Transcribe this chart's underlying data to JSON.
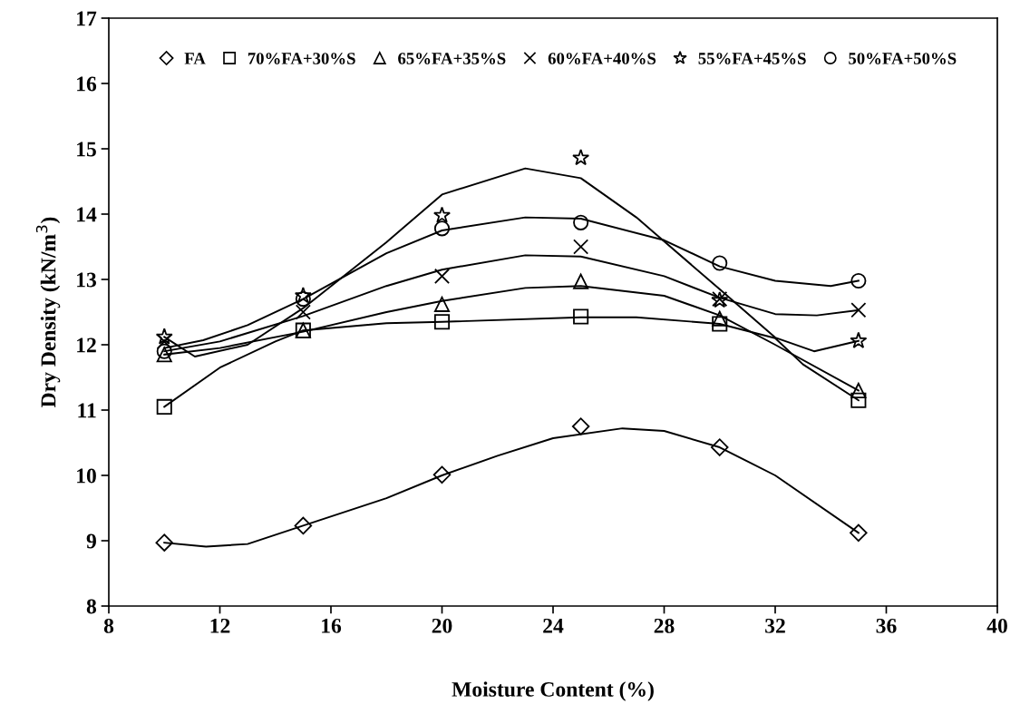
{
  "chart_data": {
    "type": "scatter",
    "xlabel": "Moisture Content (%)",
    "ylabel": "Dry Density (kN/m$^{3}$)",
    "xlim": [
      8,
      40
    ],
    "xticks": [
      8,
      12,
      16,
      20,
      24,
      28,
      32,
      36,
      40
    ],
    "ylim": [
      8,
      17
    ],
    "yticks": [
      8,
      9,
      10,
      11,
      12,
      13,
      14,
      15,
      16,
      17
    ],
    "grid": false,
    "legend": "top",
    "x": [
      10,
      15,
      20,
      25,
      30,
      35
    ],
    "series": [
      {
        "name": "FA",
        "marker": "diamond",
        "color": "#000000",
        "values": [
          8.97,
          9.23,
          10.01,
          10.75,
          10.43,
          9.12
        ]
      },
      {
        "name": "70%FA+30%S",
        "marker": "square",
        "color": "#000000",
        "values": [
          11.05,
          12.22,
          12.35,
          12.43,
          12.32,
          11.15
        ]
      },
      {
        "name": "65%FA+35%S",
        "marker": "triangle",
        "color": "#000000",
        "values": [
          11.85,
          12.22,
          12.62,
          12.97,
          12.4,
          11.3
        ]
      },
      {
        "name": "60%FA+40%S",
        "marker": "cross",
        "color": "#000000",
        "values": [
          12.05,
          12.5,
          13.05,
          13.5,
          12.7,
          12.53
        ]
      },
      {
        "name": "55%FA+45%S",
        "marker": "star",
        "color": "#000000",
        "values": [
          12.12,
          12.75,
          13.98,
          14.86,
          12.68,
          12.06
        ]
      },
      {
        "name": "50%FA+50%S",
        "marker": "circle",
        "color": "#000000",
        "values": [
          11.9,
          12.7,
          13.78,
          13.87,
          13.25,
          12.98
        ]
      },
      {
        "type": "line",
        "color": "#000000",
        "x": [
          10,
          11.5,
          13,
          15,
          18,
          20,
          22,
          24,
          26.5,
          28,
          30,
          32,
          35
        ],
        "values": [
          8.97,
          8.91,
          8.95,
          9.23,
          9.65,
          10.0,
          10.3,
          10.57,
          10.72,
          10.68,
          10.43,
          10.0,
          9.12
        ]
      },
      {
        "type": "line",
        "color": "#000000",
        "x": [
          10,
          12,
          14,
          15,
          18,
          20,
          25,
          27,
          30,
          32,
          33,
          35
        ],
        "values": [
          11.05,
          11.65,
          12.05,
          12.22,
          12.33,
          12.35,
          12.42,
          12.42,
          12.32,
          12.1,
          11.7,
          11.15
        ]
      },
      {
        "type": "line",
        "color": "#000000",
        "x": [
          10,
          12,
          15,
          18,
          20,
          23,
          25,
          28,
          30,
          32,
          35
        ],
        "values": [
          11.85,
          11.95,
          12.2,
          12.5,
          12.67,
          12.87,
          12.9,
          12.75,
          12.45,
          12.0,
          11.3
        ]
      },
      {
        "type": "line",
        "color": "#000000",
        "x": [
          10,
          12,
          15,
          18,
          20,
          23,
          25,
          28,
          30,
          32,
          33.5,
          35
        ],
        "values": [
          11.9,
          12.05,
          12.44,
          12.9,
          13.15,
          13.37,
          13.35,
          13.05,
          12.72,
          12.47,
          12.45,
          12.53
        ]
      },
      {
        "type": "line",
        "color": "#000000",
        "x": [
          10,
          11.1,
          13,
          15,
          18,
          20,
          23,
          25,
          27,
          30,
          32,
          33.4,
          35
        ],
        "values": [
          12.12,
          11.82,
          12.0,
          12.56,
          13.57,
          14.3,
          14.7,
          14.55,
          13.95,
          12.85,
          12.11,
          11.9,
          12.06
        ]
      },
      {
        "type": "line",
        "color": "#000000",
        "x": [
          10,
          11.4,
          13,
          15,
          18,
          20,
          23,
          25,
          28,
          30,
          32,
          34,
          35
        ],
        "values": [
          11.95,
          12.07,
          12.3,
          12.7,
          13.4,
          13.75,
          13.95,
          13.93,
          13.6,
          13.2,
          12.98,
          12.9,
          12.98
        ]
      }
    ]
  }
}
